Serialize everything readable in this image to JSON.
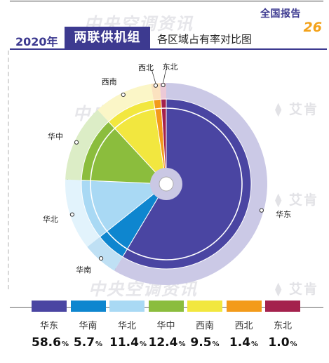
{
  "header": {
    "report_label": "全国报告",
    "report_number": "26"
  },
  "title": {
    "year": "2020年",
    "main": "两联供机组",
    "sub": "各区域占有率对比图"
  },
  "watermarks": {
    "brand_cn": "中央空调资讯",
    "brand_mark": "艾肯"
  },
  "colors": {
    "accent": "#3d3a90",
    "number_accent": "#f3a21a"
  },
  "chart_data": {
    "type": "pie",
    "title": "各区域占有率对比图",
    "unit": "%",
    "categories": [
      "华东",
      "华南",
      "华北",
      "华中",
      "西南",
      "西北",
      "东北"
    ],
    "values": [
      58.6,
      5.7,
      11.4,
      12.4,
      9.5,
      1.4,
      1.0
    ],
    "colors": [
      "#4a45a2",
      "#0e86cf",
      "#a9d9f4",
      "#8bbd3d",
      "#f2e73f",
      "#f39b1a",
      "#a4224d"
    ],
    "outer_ring_colors": [
      "#cbc9e6",
      "#bfe0f4",
      "#e2f3fc",
      "#dcedc6",
      "#fbf6c7",
      "#fbe2bf",
      "#ecc9d6"
    ],
    "legend_placement": "bottom"
  }
}
